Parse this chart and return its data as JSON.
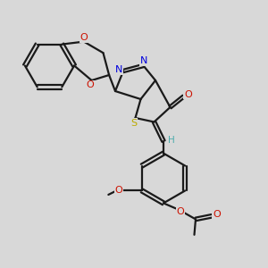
{
  "bg_color": "#d8d8d8",
  "bond_color": "#1a1a1a",
  "bond_lw": 1.6,
  "dbl_off": 0.055,
  "N_color": "#0000dd",
  "O_color": "#cc1100",
  "S_color": "#bbaa00",
  "H_color": "#4aabab",
  "label_fs": 8.0,
  "xlim": [
    0,
    10
  ],
  "ylim": [
    0,
    10
  ]
}
